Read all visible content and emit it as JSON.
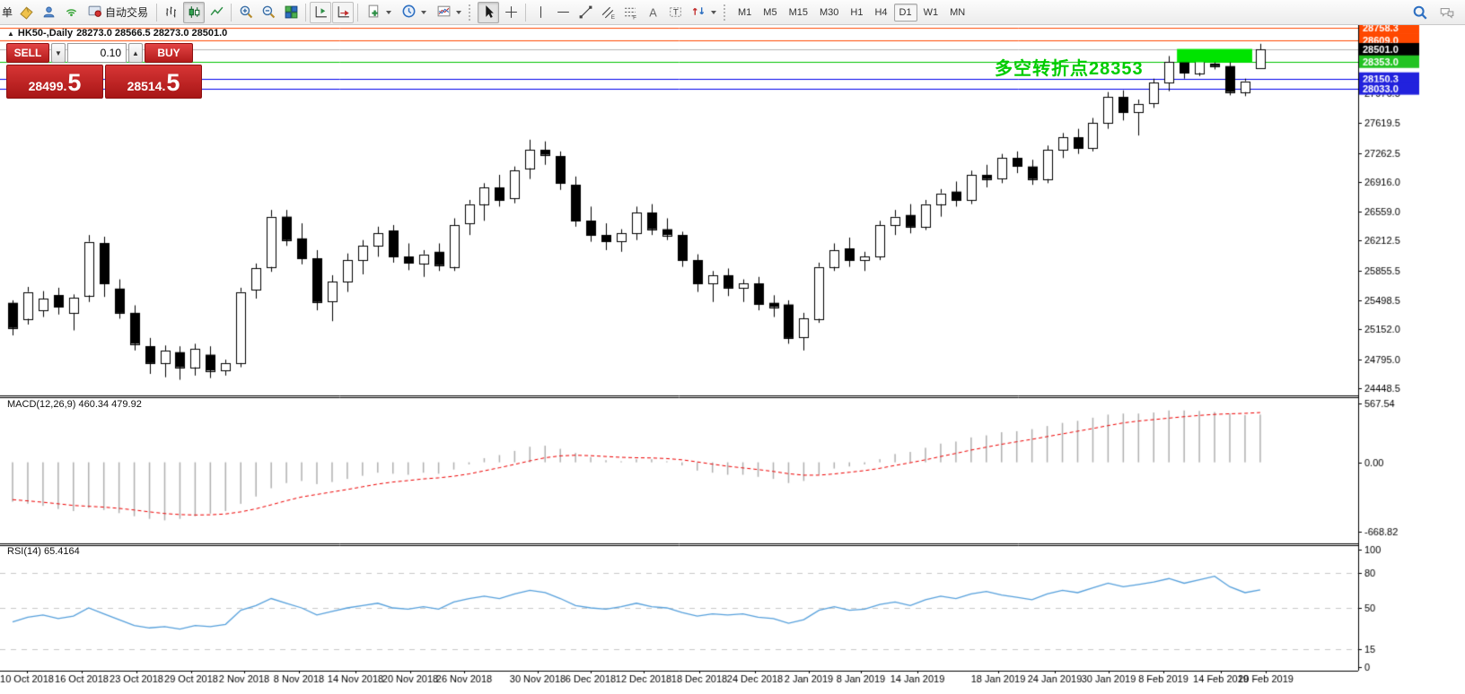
{
  "toolbar": {
    "order_label": "单",
    "auto_trading_label": "自动交易",
    "timeframes": [
      "M1",
      "M5",
      "M15",
      "M30",
      "H1",
      "H4",
      "D1",
      "W1",
      "MN"
    ],
    "active_timeframe": "D1"
  },
  "trade_panel": {
    "sell_label": "SELL",
    "buy_label": "BUY",
    "volume": "0.10",
    "step_down": "▼",
    "step_up": "▲",
    "sell_price": {
      "main": "28499.",
      "big": "5"
    },
    "buy_price": {
      "main": "28514.",
      "big": "5"
    }
  },
  "chart": {
    "collapse_icon": "▲",
    "title_symbol": "HK50-,Daily",
    "title_ohlc": "28273.0 28566.5 28273.0 28501.0",
    "annotation": {
      "text": "多空转折点28353",
      "color": "#00cc00"
    }
  },
  "chart_data": {
    "type": "candlestick+macd+rsi",
    "symbol": "HK50-",
    "period": "Daily",
    "ohlc_current": {
      "open": 28273.0,
      "high": 28566.5,
      "low": 28273.0,
      "close": 28501.0
    },
    "price_ylim": [
      24363,
      28790
    ],
    "bar_dates_note": "daily bars 10 Oct 2018 - 20 Feb 2019",
    "candles": [
      [
        25470,
        25500,
        25080,
        25170
      ],
      [
        25280,
        25660,
        25210,
        25600
      ],
      [
        25380,
        25610,
        25300,
        25520
      ],
      [
        25560,
        25650,
        25330,
        25420
      ],
      [
        25350,
        25570,
        25140,
        25530
      ],
      [
        25560,
        26280,
        25480,
        26200
      ],
      [
        26180,
        26260,
        25540,
        25700
      ],
      [
        25640,
        25750,
        25280,
        25350
      ],
      [
        25350,
        25440,
        24900,
        24980
      ],
      [
        24950,
        25050,
        24620,
        24750
      ],
      [
        24750,
        24960,
        24580,
        24900
      ],
      [
        24880,
        24950,
        24550,
        24700
      ],
      [
        24700,
        24980,
        24600,
        24920
      ],
      [
        24850,
        24950,
        24570,
        24660
      ],
      [
        24660,
        24790,
        24600,
        24750
      ],
      [
        24750,
        25650,
        24700,
        25600
      ],
      [
        25620,
        25940,
        25520,
        25880
      ],
      [
        25900,
        26580,
        25840,
        26500
      ],
      [
        26500,
        26580,
        26150,
        26220
      ],
      [
        26240,
        26420,
        25930,
        26000
      ],
      [
        26000,
        26100,
        25380,
        25480
      ],
      [
        25480,
        25800,
        25250,
        25720
      ],
      [
        25720,
        26060,
        25600,
        25980
      ],
      [
        25980,
        26220,
        25810,
        26150
      ],
      [
        26150,
        26380,
        26020,
        26300
      ],
      [
        26330,
        26400,
        25950,
        26020
      ],
      [
        26020,
        26180,
        25860,
        25940
      ],
      [
        25940,
        26100,
        25780,
        26050
      ],
      [
        26080,
        26180,
        25850,
        25920
      ],
      [
        25900,
        26480,
        25850,
        26400
      ],
      [
        26420,
        26700,
        26280,
        26650
      ],
      [
        26650,
        26900,
        26450,
        26850
      ],
      [
        26850,
        27000,
        26620,
        26700
      ],
      [
        26720,
        27100,
        26660,
        27050
      ],
      [
        27080,
        27420,
        26950,
        27300
      ],
      [
        27300,
        27400,
        27120,
        27240
      ],
      [
        27220,
        27280,
        26820,
        26900
      ],
      [
        26880,
        26980,
        26380,
        26450
      ],
      [
        26450,
        26620,
        26200,
        26280
      ],
      [
        26280,
        26420,
        26100,
        26200
      ],
      [
        26200,
        26350,
        26080,
        26300
      ],
      [
        26300,
        26620,
        26220,
        26550
      ],
      [
        26550,
        26650,
        26280,
        26350
      ],
      [
        26350,
        26480,
        26220,
        26280
      ],
      [
        26280,
        26320,
        25900,
        25980
      ],
      [
        25980,
        26050,
        25600,
        25700
      ],
      [
        25700,
        25850,
        25480,
        25800
      ],
      [
        25800,
        25880,
        25550,
        25650
      ],
      [
        25650,
        25750,
        25480,
        25700
      ],
      [
        25700,
        25780,
        25380,
        25450
      ],
      [
        25470,
        25560,
        25300,
        25420
      ],
      [
        25450,
        25500,
        24980,
        25050
      ],
      [
        25050,
        25350,
        24900,
        25280
      ],
      [
        25280,
        25950,
        25230,
        25900
      ],
      [
        25900,
        26180,
        25850,
        26100
      ],
      [
        26120,
        26250,
        25900,
        25980
      ],
      [
        25980,
        26080,
        25850,
        26020
      ],
      [
        26020,
        26450,
        25980,
        26400
      ],
      [
        26400,
        26580,
        26280,
        26500
      ],
      [
        26520,
        26650,
        26300,
        26380
      ],
      [
        26380,
        26700,
        26340,
        26650
      ],
      [
        26650,
        26830,
        26500,
        26780
      ],
      [
        26800,
        26920,
        26620,
        26700
      ],
      [
        26700,
        27050,
        26650,
        27000
      ],
      [
        27000,
        27120,
        26850,
        26950
      ],
      [
        26950,
        27250,
        26900,
        27200
      ],
      [
        27200,
        27280,
        27020,
        27100
      ],
      [
        27100,
        27180,
        26880,
        26950
      ],
      [
        26950,
        27350,
        26900,
        27300
      ],
      [
        27300,
        27500,
        27200,
        27450
      ],
      [
        27450,
        27550,
        27250,
        27320
      ],
      [
        27320,
        27680,
        27280,
        27620
      ],
      [
        27620,
        27990,
        27550,
        27930
      ],
      [
        27930,
        28010,
        27650,
        27750
      ],
      [
        27750,
        27900,
        27470,
        27850
      ],
      [
        27850,
        28150,
        27800,
        28100
      ],
      [
        28100,
        28420,
        28000,
        28350
      ],
      [
        28350,
        28470,
        28150,
        28220
      ],
      [
        28220,
        28500,
        28180,
        28420
      ],
      [
        28330,
        28420,
        28260,
        28300
      ],
      [
        28300,
        28350,
        27950,
        27990
      ],
      [
        27990,
        28150,
        27940,
        28120
      ],
      [
        28273,
        28566.5,
        28273,
        28501
      ]
    ],
    "price_ticks": [
      "27976.5",
      "27619.5",
      "27262.5",
      "26916.0",
      "26559.0",
      "26212.5",
      "25855.5",
      "25498.5",
      "25152.0",
      "24795.0",
      "24448.5"
    ],
    "hlines": [
      {
        "price": 28758.3,
        "label": "28758.3",
        "line": "#ff4800",
        "badge": "#ff4800"
      },
      {
        "price": 28609.0,
        "label": "28609.0",
        "line": "#ff4800",
        "badge": "#ff4800"
      },
      {
        "price": 28501.0,
        "label": "28501.0",
        "line": "#b4b4b4",
        "badge": "#000000"
      },
      {
        "price": 28353.0,
        "label": "28353.0",
        "line": "#00c400",
        "badge": "#22c322"
      },
      {
        "price": 28150.3,
        "label": "28150.3",
        "line": "#0000ee",
        "badge": "#2222dd"
      },
      {
        "price": 28033.0,
        "label": "28033.0",
        "line": "#0000ee",
        "badge": "#2222dd"
      }
    ],
    "highlight_rect": {
      "from_bar": 77,
      "to_bar": 81,
      "price_top": 28505,
      "price_bottom": 28345,
      "color": "#00e400"
    },
    "macd": {
      "label": "MACD(12,26,9)",
      "values_label": "460.34 479.92",
      "ylim": [
        -668.82,
        567.54
      ],
      "ticks": [
        {
          "v": 567.54,
          "label": "567.54"
        },
        {
          "v": 0,
          "label": "0.00"
        },
        {
          "v": -668.82,
          "label": "-668.82"
        }
      ],
      "hist": [
        -380,
        -400,
        -420,
        -450,
        -470,
        -440,
        -460,
        -490,
        -520,
        -545,
        -560,
        -545,
        -520,
        -495,
        -470,
        -400,
        -330,
        -250,
        -200,
        -180,
        -210,
        -190,
        -160,
        -130,
        -100,
        -110,
        -120,
        -100,
        -110,
        -70,
        -20,
        40,
        70,
        110,
        150,
        160,
        130,
        90,
        50,
        20,
        10,
        30,
        30,
        10,
        -30,
        -80,
        -100,
        -120,
        -120,
        -140,
        -160,
        -200,
        -180,
        -120,
        -60,
        -40,
        -20,
        30,
        80,
        100,
        140,
        180,
        200,
        240,
        260,
        290,
        300,
        320,
        350,
        380,
        400,
        430,
        460,
        470,
        470,
        480,
        500,
        500,
        495,
        485,
        470,
        455,
        460.34
      ],
      "signal": [
        -360,
        -372,
        -385,
        -400,
        -416,
        -424,
        -432,
        -444,
        -460,
        -478,
        -494,
        -504,
        -508,
        -506,
        -498,
        -478,
        -448,
        -410,
        -370,
        -334,
        -310,
        -286,
        -262,
        -236,
        -210,
        -190,
        -176,
        -160,
        -150,
        -134,
        -112,
        -82,
        -52,
        -20,
        14,
        44,
        62,
        68,
        64,
        56,
        48,
        44,
        42,
        36,
        24,
        4,
        -18,
        -38,
        -54,
        -70,
        -88,
        -110,
        -124,
        -124,
        -112,
        -96,
        -80,
        -58,
        -30,
        -4,
        24,
        56,
        86,
        118,
        146,
        174,
        198,
        222,
        248,
        274,
        300,
        326,
        354,
        380,
        398,
        412,
        426,
        440,
        452,
        462,
        468,
        472,
        479.92
      ]
    },
    "rsi": {
      "label": "RSI(14)",
      "value_label": "65.4164",
      "ylim": [
        0,
        100
      ],
      "ticks": [
        {
          "v": 100,
          "label": "100"
        },
        {
          "v": 80,
          "label": "80"
        },
        {
          "v": 50,
          "label": "50"
        },
        {
          "v": 15,
          "label": "15"
        },
        {
          "v": 0,
          "label": "0"
        }
      ],
      "levels": [
        80,
        50,
        15
      ],
      "values": [
        38,
        42,
        44,
        41,
        43,
        50,
        45,
        40,
        35,
        33,
        34,
        32,
        35,
        34,
        36,
        48,
        52,
        58,
        54,
        50,
        44,
        47,
        50,
        52,
        54,
        50,
        49,
        51,
        49,
        55,
        58,
        60,
        58,
        62,
        65,
        63,
        58,
        52,
        50,
        49,
        51,
        54,
        51,
        50,
        46,
        43,
        45,
        44,
        45,
        42,
        41,
        37,
        40,
        48,
        51,
        48,
        49,
        53,
        55,
        52,
        57,
        60,
        58,
        62,
        64,
        61,
        59,
        57,
        62,
        65,
        63,
        67,
        71,
        68,
        70,
        72,
        75,
        71,
        74,
        77,
        68,
        63,
        65.4164
      ]
    },
    "dates": [
      {
        "label": "10 Oct 2018",
        "x": 30
      },
      {
        "label": "16 Oct 2018",
        "x": 91
      },
      {
        "label": "23 Oct 2018",
        "x": 152
      },
      {
        "label": "29 Oct 2018",
        "x": 213
      },
      {
        "label": "2 Nov 2018",
        "x": 272
      },
      {
        "label": "8 Nov 2018",
        "x": 333
      },
      {
        "label": "14 Nov 2018",
        "x": 396
      },
      {
        "label": "20 Nov 2018",
        "x": 457
      },
      {
        "label": "26 Nov 2018",
        "x": 517
      },
      {
        "label": "30 Nov 2018",
        "x": 599
      },
      {
        "label": "6 Dec 2018",
        "x": 658
      },
      {
        "label": "12 Dec 2018",
        "x": 717
      },
      {
        "label": "18 Dec 2018",
        "x": 779
      },
      {
        "label": "24 Dec 2018",
        "x": 841
      },
      {
        "label": "2 Jan 2019",
        "x": 901
      },
      {
        "label": "8 Jan 2019",
        "x": 959
      },
      {
        "label": "14 Jan 2019",
        "x": 1022
      },
      {
        "label": "18 Jan 2019",
        "x": 1112
      },
      {
        "label": "24 Jan 2019",
        "x": 1175
      },
      {
        "label": "30 Jan 2019",
        "x": 1235
      },
      {
        "label": "8 Feb 2019",
        "x": 1296
      },
      {
        "label": "14 Feb 2019",
        "x": 1360
      },
      {
        "label": "20 Feb 2019",
        "x": 1410
      }
    ]
  }
}
